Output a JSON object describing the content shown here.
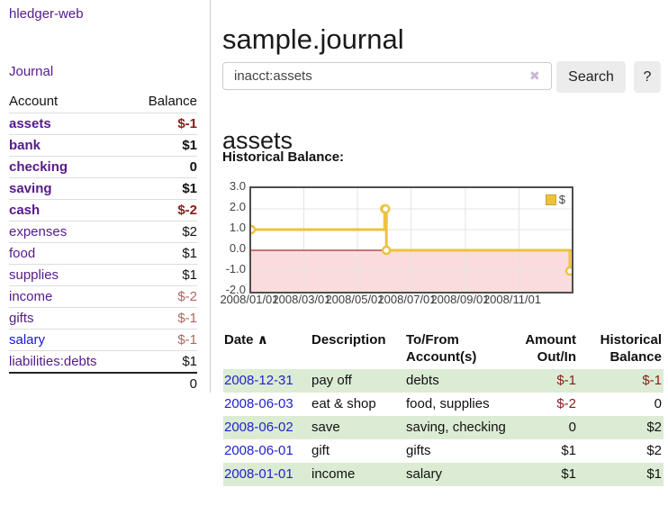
{
  "app_title": "hledger-web",
  "sidebar": {
    "journal_link": "Journal",
    "accounts": {
      "header": {
        "account": "Account",
        "balance": "Balance"
      },
      "rows": [
        {
          "name": "assets",
          "balance": "$-1"
        },
        {
          "name": "bank",
          "balance": "$1"
        },
        {
          "name": "checking",
          "balance": "0"
        },
        {
          "name": "saving",
          "balance": "$1"
        },
        {
          "name": "cash",
          "balance": "$-2"
        },
        {
          "name": "expenses",
          "balance": "$2"
        },
        {
          "name": "food",
          "balance": "$1"
        },
        {
          "name": "supplies",
          "balance": "$1"
        },
        {
          "name": "income",
          "balance": "$-2"
        },
        {
          "name": "gifts",
          "balance": "$-1"
        },
        {
          "name": "salary",
          "balance": "$-1"
        },
        {
          "name": "liabilities:debts",
          "balance": "$1"
        }
      ],
      "total": "0"
    }
  },
  "main": {
    "title": "sample.journal",
    "search": {
      "value": "inacct:assets",
      "clear_icon": "✖",
      "search_button": "Search",
      "help_button": "?"
    },
    "section_heading": "assets",
    "chart_title": "Historical Balance:"
  },
  "chart_data": {
    "type": "line",
    "style": "step",
    "title": "Historical Balance",
    "xlim": [
      "2008-01-01",
      "2008-12-31"
    ],
    "ylim": [
      -2,
      3
    ],
    "y_ticks": [
      "3.0",
      "2.0",
      "1.0",
      "0.0",
      "-1.0",
      "-2.0"
    ],
    "y_tick_values": [
      3,
      2,
      1,
      0,
      -1,
      -2
    ],
    "x_ticks": [
      "2008/01/01",
      "2008/03/01",
      "2008/05/01",
      "2008/07/01",
      "2008/09/01",
      "2008/11/01"
    ],
    "grid": true,
    "negative_region_color": "#fbdcdc",
    "zero_line_color": "#8b0000",
    "legend": {
      "label": "$",
      "position": "top-right"
    },
    "series": [
      {
        "name": "$",
        "color": "#edc240",
        "points": [
          [
            "2008-01-01",
            1
          ],
          [
            "2008-06-01",
            2
          ],
          [
            "2008-06-02",
            2
          ],
          [
            "2008-06-03",
            0
          ],
          [
            "2008-12-31",
            -1
          ]
        ]
      }
    ]
  },
  "register": {
    "headers": {
      "date": "Date",
      "sort_icon": "∧",
      "description": "Description",
      "account": "To/From Account(s)",
      "amount": "Amount Out/In",
      "balance": "Historical Balance"
    },
    "rows": [
      {
        "date": "2008-12-31",
        "description": "pay off",
        "account": "debts",
        "amount": "$-1",
        "balance": "$-1"
      },
      {
        "date": "2008-06-03",
        "description": "eat & shop",
        "account": "food, supplies",
        "amount": "$-2",
        "balance": "0"
      },
      {
        "date": "2008-06-02",
        "description": "save",
        "account": "saving, checking",
        "amount": "0",
        "balance": "$2"
      },
      {
        "date": "2008-06-01",
        "description": "gift",
        "account": "gifts",
        "amount": "$1",
        "balance": "$2"
      },
      {
        "date": "2008-01-01",
        "description": "income",
        "account": "salary",
        "amount": "$1",
        "balance": "$1"
      }
    ]
  },
  "colors": {
    "link_purple": "#551a8b",
    "link_blue": "#2222cc",
    "negative_red": "#8c1a1a",
    "muted_negative": "#b86060",
    "row_stripe_green": "#dcecd4",
    "chart_gold": "#edc240",
    "chart_negative_region": "#fbdcdc",
    "chart_zero_line": "#8b0000"
  }
}
